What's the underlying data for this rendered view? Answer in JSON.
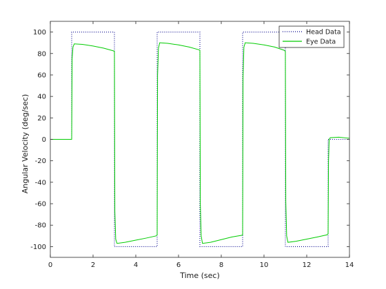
{
  "chart_data": {
    "type": "line",
    "title": "",
    "xlabel": "Time (sec)",
    "ylabel": "Angular  Velocity  (deg/sec)",
    "xlim": [
      0,
      14
    ],
    "ylim": [
      -110,
      110
    ],
    "xticks": [
      0,
      2,
      4,
      6,
      8,
      10,
      12,
      14
    ],
    "yticks": [
      -100,
      -80,
      -60,
      -40,
      -20,
      0,
      20,
      40,
      60,
      80,
      100
    ],
    "grid": false,
    "legend": {
      "placement": "top-right"
    },
    "series": [
      {
        "name": "Head Data",
        "color": "#00008b",
        "style": "dotted",
        "points": [
          [
            0,
            0
          ],
          [
            1.0,
            0
          ],
          [
            1.0,
            100
          ],
          [
            3.0,
            100
          ],
          [
            3.0,
            -100
          ],
          [
            5.0,
            -100
          ],
          [
            5.0,
            100
          ],
          [
            7.0,
            100
          ],
          [
            7.0,
            -100
          ],
          [
            9.0,
            -100
          ],
          [
            9.0,
            100
          ],
          [
            11.0,
            100
          ],
          [
            11.0,
            -100
          ],
          [
            13.0,
            -100
          ],
          [
            13.0,
            0
          ],
          [
            14,
            0
          ]
        ]
      },
      {
        "name": "Eye Data",
        "color": "#00cc00",
        "style": "solid",
        "points": [
          [
            0,
            0
          ],
          [
            0.5,
            0
          ],
          [
            1.0,
            0
          ],
          [
            1.02,
            75
          ],
          [
            1.06,
            86
          ],
          [
            1.12,
            89
          ],
          [
            1.5,
            88.5
          ],
          [
            2.0,
            87
          ],
          [
            2.5,
            85
          ],
          [
            2.95,
            82.5
          ],
          [
            3.0,
            82
          ],
          [
            3.02,
            -67
          ],
          [
            3.06,
            -93
          ],
          [
            3.12,
            -97
          ],
          [
            3.5,
            -96
          ],
          [
            4.0,
            -94
          ],
          [
            4.5,
            -92
          ],
          [
            4.95,
            -90
          ],
          [
            5.0,
            -89
          ],
          [
            5.02,
            60
          ],
          [
            5.06,
            85
          ],
          [
            5.12,
            90
          ],
          [
            5.5,
            89.5
          ],
          [
            6.0,
            88
          ],
          [
            6.5,
            86
          ],
          [
            6.95,
            83.5
          ],
          [
            7.0,
            83
          ],
          [
            7.02,
            -60
          ],
          [
            7.06,
            -90
          ],
          [
            7.12,
            -97
          ],
          [
            7.5,
            -96
          ],
          [
            8.0,
            -93.5
          ],
          [
            8.5,
            -91
          ],
          [
            8.95,
            -89.5
          ],
          [
            9.0,
            -89
          ],
          [
            9.02,
            58
          ],
          [
            9.06,
            86
          ],
          [
            9.12,
            90
          ],
          [
            9.5,
            89.5
          ],
          [
            10.0,
            88
          ],
          [
            10.5,
            86
          ],
          [
            10.95,
            83
          ],
          [
            11.0,
            82
          ],
          [
            11.02,
            -58
          ],
          [
            11.06,
            -90
          ],
          [
            11.12,
            -96
          ],
          [
            11.5,
            -95
          ],
          [
            12.0,
            -93
          ],
          [
            12.5,
            -91
          ],
          [
            12.95,
            -89
          ],
          [
            13.0,
            -88
          ],
          [
            13.02,
            -20
          ],
          [
            13.05,
            0
          ],
          [
            13.1,
            1.5
          ],
          [
            13.5,
            2
          ],
          [
            14,
            1
          ]
        ]
      }
    ]
  }
}
